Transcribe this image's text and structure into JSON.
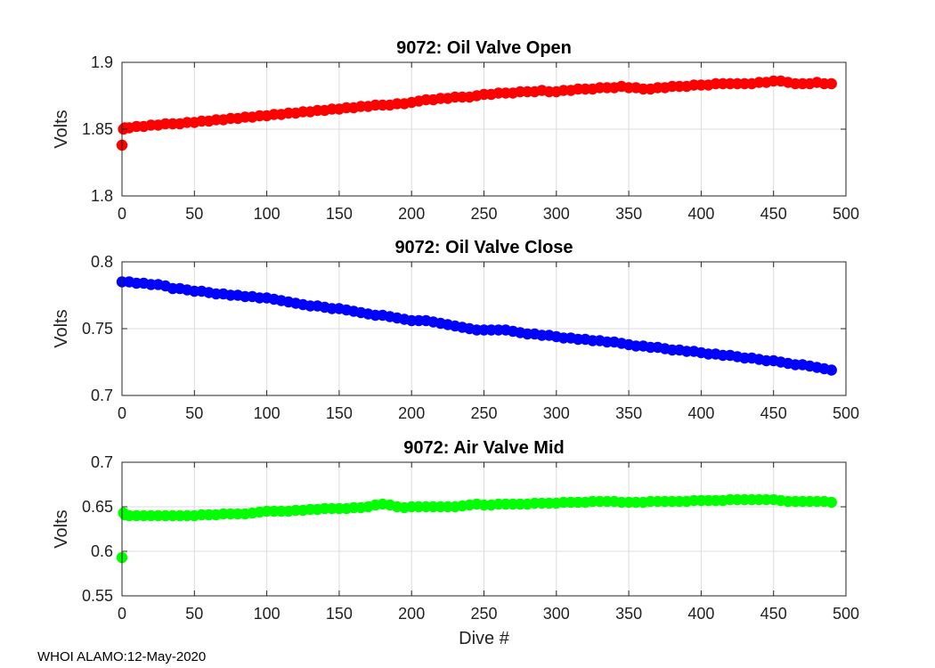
{
  "footer": "WHOI ALAMO:12-May-2020",
  "chart_data": [
    {
      "type": "scatter",
      "title": "9072: Oil Valve Open",
      "xlabel": "",
      "ylabel": "Volts",
      "xlim": [
        0,
        500
      ],
      "ylim": [
        1.8,
        1.9
      ],
      "xticks": [
        0,
        50,
        100,
        150,
        200,
        250,
        300,
        350,
        400,
        450,
        500
      ],
      "yticks": [
        1.8,
        1.85,
        1.9
      ],
      "ytick_labels": [
        "1.8",
        "1.85",
        "1.9"
      ],
      "grid": true,
      "color": "#ff0000",
      "x": [
        0,
        1,
        2,
        5,
        10,
        15,
        20,
        25,
        30,
        35,
        40,
        45,
        50,
        55,
        60,
        65,
        70,
        75,
        80,
        85,
        90,
        95,
        100,
        105,
        110,
        115,
        120,
        125,
        130,
        135,
        140,
        145,
        150,
        155,
        160,
        165,
        170,
        175,
        180,
        185,
        190,
        195,
        200,
        205,
        210,
        215,
        220,
        225,
        230,
        235,
        240,
        245,
        250,
        255,
        260,
        265,
        270,
        275,
        280,
        285,
        290,
        295,
        300,
        305,
        310,
        315,
        320,
        325,
        330,
        335,
        340,
        345,
        350,
        355,
        360,
        365,
        370,
        375,
        380,
        385,
        390,
        395,
        400,
        405,
        410,
        415,
        420,
        425,
        430,
        435,
        440,
        445,
        450,
        455,
        460,
        465,
        470,
        475,
        480,
        485,
        490
      ],
      "y": [
        1.838,
        1.85,
        1.851,
        1.851,
        1.852,
        1.852,
        1.853,
        1.853,
        1.854,
        1.854,
        1.854,
        1.855,
        1.855,
        1.856,
        1.856,
        1.857,
        1.857,
        1.858,
        1.858,
        1.859,
        1.859,
        1.86,
        1.86,
        1.861,
        1.861,
        1.862,
        1.862,
        1.863,
        1.863,
        1.864,
        1.864,
        1.865,
        1.865,
        1.866,
        1.866,
        1.867,
        1.867,
        1.868,
        1.868,
        1.868,
        1.869,
        1.869,
        1.87,
        1.871,
        1.872,
        1.872,
        1.873,
        1.873,
        1.874,
        1.874,
        1.874,
        1.875,
        1.876,
        1.876,
        1.877,
        1.877,
        1.877,
        1.878,
        1.878,
        1.878,
        1.879,
        1.878,
        1.878,
        1.879,
        1.879,
        1.88,
        1.88,
        1.88,
        1.881,
        1.881,
        1.881,
        1.882,
        1.881,
        1.881,
        1.88,
        1.88,
        1.881,
        1.881,
        1.882,
        1.882,
        1.882,
        1.883,
        1.883,
        1.883,
        1.884,
        1.884,
        1.884,
        1.884,
        1.884,
        1.884,
        1.885,
        1.885,
        1.886,
        1.886,
        1.885,
        1.884,
        1.884,
        1.884,
        1.885,
        1.884,
        1.884
      ]
    },
    {
      "type": "scatter",
      "title": "9072: Oil Valve Close",
      "xlabel": "",
      "ylabel": "Volts",
      "xlim": [
        0,
        500
      ],
      "ylim": [
        0.7,
        0.8
      ],
      "xticks": [
        0,
        50,
        100,
        150,
        200,
        250,
        300,
        350,
        400,
        450,
        500
      ],
      "yticks": [
        0.7,
        0.75,
        0.8
      ],
      "ytick_labels": [
        "0.7",
        "0.75",
        "0.8"
      ],
      "grid": true,
      "color": "#0000ff",
      "x": [
        0,
        5,
        10,
        15,
        20,
        25,
        30,
        35,
        40,
        45,
        50,
        55,
        60,
        65,
        70,
        75,
        80,
        85,
        90,
        95,
        100,
        105,
        110,
        115,
        120,
        125,
        130,
        135,
        140,
        145,
        150,
        155,
        160,
        165,
        170,
        175,
        180,
        185,
        190,
        195,
        200,
        205,
        210,
        215,
        220,
        225,
        230,
        235,
        240,
        245,
        250,
        255,
        260,
        265,
        270,
        275,
        280,
        285,
        290,
        295,
        300,
        305,
        310,
        315,
        320,
        325,
        330,
        335,
        340,
        345,
        350,
        355,
        360,
        365,
        370,
        375,
        380,
        385,
        390,
        395,
        400,
        405,
        410,
        415,
        420,
        425,
        430,
        435,
        440,
        445,
        450,
        455,
        460,
        465,
        470,
        475,
        480,
        485,
        490
      ],
      "y": [
        0.785,
        0.785,
        0.784,
        0.784,
        0.783,
        0.783,
        0.782,
        0.78,
        0.78,
        0.779,
        0.778,
        0.778,
        0.777,
        0.776,
        0.776,
        0.775,
        0.775,
        0.774,
        0.774,
        0.773,
        0.773,
        0.772,
        0.771,
        0.77,
        0.769,
        0.768,
        0.767,
        0.767,
        0.766,
        0.765,
        0.765,
        0.764,
        0.763,
        0.762,
        0.761,
        0.76,
        0.76,
        0.759,
        0.758,
        0.757,
        0.756,
        0.756,
        0.756,
        0.755,
        0.754,
        0.753,
        0.752,
        0.751,
        0.75,
        0.749,
        0.749,
        0.749,
        0.749,
        0.749,
        0.748,
        0.747,
        0.746,
        0.746,
        0.745,
        0.745,
        0.744,
        0.743,
        0.743,
        0.742,
        0.742,
        0.741,
        0.741,
        0.74,
        0.74,
        0.739,
        0.738,
        0.737,
        0.737,
        0.736,
        0.736,
        0.735,
        0.734,
        0.734,
        0.733,
        0.733,
        0.732,
        0.731,
        0.731,
        0.73,
        0.73,
        0.729,
        0.728,
        0.728,
        0.727,
        0.726,
        0.726,
        0.725,
        0.724,
        0.723,
        0.723,
        0.722,
        0.721,
        0.72,
        0.719
      ]
    },
    {
      "type": "scatter",
      "title": "9072: Air Valve Mid",
      "xlabel": "Dive #",
      "ylabel": "Volts",
      "xlim": [
        0,
        500
      ],
      "ylim": [
        0.55,
        0.7
      ],
      "xticks": [
        0,
        50,
        100,
        150,
        200,
        250,
        300,
        350,
        400,
        450,
        500
      ],
      "yticks": [
        0.55,
        0.6,
        0.65,
        0.7
      ],
      "ytick_labels": [
        "0.55",
        "0.6",
        "0.65",
        "0.7"
      ],
      "grid": true,
      "color": "#00ff00",
      "x": [
        0,
        1,
        2,
        5,
        10,
        15,
        20,
        25,
        30,
        35,
        40,
        45,
        50,
        55,
        60,
        65,
        70,
        75,
        80,
        85,
        90,
        95,
        100,
        105,
        110,
        115,
        120,
        125,
        130,
        135,
        140,
        145,
        150,
        155,
        160,
        165,
        170,
        175,
        180,
        185,
        190,
        195,
        200,
        205,
        210,
        215,
        220,
        225,
        230,
        235,
        240,
        245,
        250,
        255,
        260,
        265,
        270,
        275,
        280,
        285,
        290,
        295,
        300,
        305,
        310,
        315,
        320,
        325,
        330,
        335,
        340,
        345,
        350,
        355,
        360,
        365,
        370,
        375,
        380,
        385,
        390,
        395,
        400,
        405,
        410,
        415,
        420,
        425,
        430,
        435,
        440,
        445,
        450,
        455,
        460,
        465,
        470,
        475,
        480,
        485,
        490
      ],
      "y": [
        0.593,
        0.643,
        0.641,
        0.64,
        0.64,
        0.64,
        0.64,
        0.64,
        0.64,
        0.64,
        0.64,
        0.64,
        0.64,
        0.641,
        0.641,
        0.641,
        0.642,
        0.642,
        0.642,
        0.642,
        0.643,
        0.644,
        0.645,
        0.645,
        0.645,
        0.645,
        0.646,
        0.646,
        0.647,
        0.647,
        0.648,
        0.648,
        0.648,
        0.648,
        0.649,
        0.649,
        0.65,
        0.652,
        0.653,
        0.652,
        0.65,
        0.649,
        0.65,
        0.65,
        0.65,
        0.65,
        0.65,
        0.65,
        0.65,
        0.651,
        0.652,
        0.653,
        0.652,
        0.652,
        0.653,
        0.653,
        0.653,
        0.653,
        0.653,
        0.654,
        0.654,
        0.654,
        0.654,
        0.655,
        0.655,
        0.655,
        0.655,
        0.656,
        0.656,
        0.656,
        0.656,
        0.655,
        0.655,
        0.655,
        0.655,
        0.656,
        0.656,
        0.656,
        0.656,
        0.656,
        0.656,
        0.657,
        0.657,
        0.657,
        0.657,
        0.657,
        0.658,
        0.658,
        0.658,
        0.658,
        0.658,
        0.658,
        0.658,
        0.657,
        0.656,
        0.656,
        0.656,
        0.656,
        0.656,
        0.656,
        0.655
      ]
    }
  ]
}
